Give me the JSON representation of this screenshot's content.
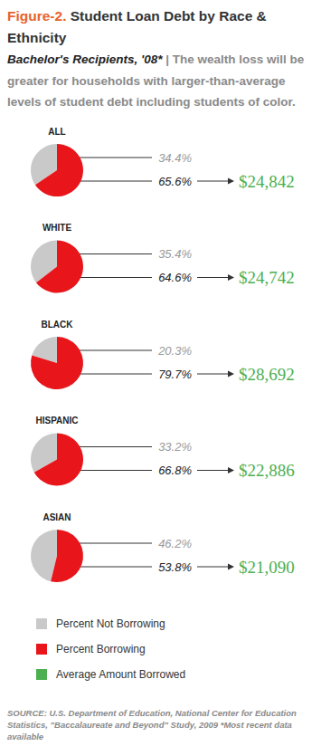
{
  "title_prefix": "Figure-2.",
  "title": "Student Loan Debt by Race & Ethnicity",
  "subtitle": "Bachelor's Recipients, '08*",
  "separator": "|",
  "annotations": [
    "The wealth loss will be greater for households with larger-than-average levels of student debt including students of color."
  ],
  "source": "SOURCE: U.S. Department of Education, National Center for Education Statistics, \"Baccalaureate and Beyond\" Study, 2009",
  "source_note": "*Most recent data available",
  "amount_name": "Average Amount Borrowed",
  "amount_color": "#4caf50",
  "chart_data": [
    {
      "type": "pie",
      "title": "ALL",
      "categories": [
        "Percent Not Borrowing",
        "Percent Borrowing"
      ],
      "values": [
        34.4,
        65.6
      ],
      "value_labels": [
        "34.4%",
        "65.6%"
      ],
      "colors": [
        "#c9c9c9",
        "#e8151b"
      ],
      "data_labels": true,
      "average_amount_borrowed": 24842,
      "average_amount_label": "$24,842"
    },
    {
      "type": "pie",
      "title": "WHITE",
      "categories": [
        "Percent Not Borrowing",
        "Percent Borrowing"
      ],
      "values": [
        35.4,
        64.6
      ],
      "value_labels": [
        "35.4%",
        "64.6%"
      ],
      "colors": [
        "#c9c9c9",
        "#e8151b"
      ],
      "data_labels": true,
      "average_amount_borrowed": 24742,
      "average_amount_label": "$24,742"
    },
    {
      "type": "pie",
      "title": "BLACK",
      "categories": [
        "Percent Not Borrowing",
        "Percent Borrowing"
      ],
      "values": [
        20.3,
        79.7
      ],
      "value_labels": [
        "20.3%",
        "79.7%"
      ],
      "colors": [
        "#c9c9c9",
        "#e8151b"
      ],
      "data_labels": true,
      "average_amount_borrowed": 28692,
      "average_amount_label": "$28,692"
    },
    {
      "type": "pie",
      "title": "HISPANIC",
      "categories": [
        "Percent Not Borrowing",
        "Percent Borrowing"
      ],
      "values": [
        33.2,
        66.8
      ],
      "value_labels": [
        "33.2%",
        "66.8%"
      ],
      "colors": [
        "#c9c9c9",
        "#e8151b"
      ],
      "data_labels": true,
      "average_amount_borrowed": 22886,
      "average_amount_label": "$22,886"
    },
    {
      "type": "pie",
      "title": "ASIAN",
      "categories": [
        "Percent Not Borrowing",
        "Percent Borrowing"
      ],
      "values": [
        46.2,
        53.8
      ],
      "value_labels": [
        "46.2%",
        "53.8%"
      ],
      "colors": [
        "#c9c9c9",
        "#e8151b"
      ],
      "data_labels": true,
      "average_amount_borrowed": 21090,
      "average_amount_label": "$21,090"
    }
  ]
}
